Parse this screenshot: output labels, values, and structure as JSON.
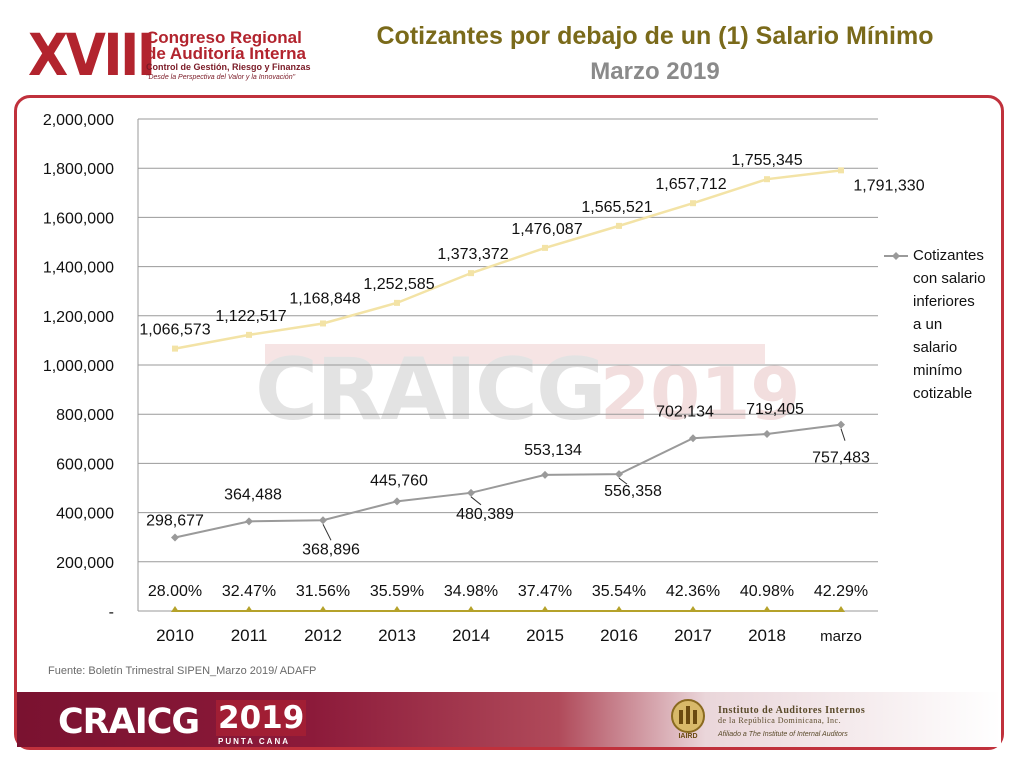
{
  "header": {
    "logo_numeral": "XVIII",
    "logo_line1": "Congreso Regional",
    "logo_line2": "de Auditoría Interna",
    "logo_line3": "Control de Gestión, Riesgo y Finanzas",
    "logo_line4": "\"Desde la Perspectiva del Valor y la Innovación\"",
    "title": "Cotizantes por debajo de un (1) Salario Mínimo",
    "subtitle": "Marzo 2019"
  },
  "watermark": {
    "text": "CRAICG",
    "year": "2019",
    "place": "PUNTA CANA"
  },
  "source": "Fuente: Boletín Trimestral SIPEN_Marzo 2019/ ADAFP",
  "footer": {
    "brand": "CRAICG",
    "year": "2019",
    "place": "PUNTA CANA",
    "org_line1": "Instituto de Auditores Internos",
    "org_line2": "de la República Dominicana, Inc.",
    "org_line3": "Afiliado a The Institute of Internal Auditors",
    "org_logo_text": "IAIRD"
  },
  "colors": {
    "title": "#7a6a1a",
    "subtitle": "#8a8a8a",
    "brand_red": "#b2242e",
    "series_total": "#f3e3a6",
    "series_below": "#9a9a9a",
    "series_pct": "#b5a22a",
    "grid": "#9a9a9a"
  },
  "chart_data": {
    "type": "line",
    "categories": [
      "2010",
      "2011",
      "2012",
      "2013",
      "2014",
      "2015",
      "2016",
      "2017",
      "2018",
      "marzo"
    ],
    "ylim": [
      0,
      2000000
    ],
    "yticks": [
      "-",
      "200,000",
      "400,000",
      "600,000",
      "800,000",
      "1,000,000",
      "1,200,000",
      "1,400,000",
      "1,600,000",
      "1,800,000",
      "2,000,000"
    ],
    "grid": true,
    "legend_position": "right",
    "series": [
      {
        "values": [
          1066573,
          1122517,
          1168848,
          1252585,
          1373372,
          1476087,
          1565521,
          1657712,
          1755345,
          1791330
        ],
        "labels": [
          "1,066,573",
          "1,122,517",
          "1,168,848",
          "1,252,585",
          "1,373,372",
          "1,476,087",
          "1,565,521",
          "1,657,712",
          "1,755,345",
          "1,791,330"
        ]
      },
      {
        "name": "Cotizantes con salario inferiores a un salario minímo cotizable",
        "legend_lines": [
          "Cotizantes",
          "con salario",
          "inferiores",
          "a un",
          "salario",
          "minímo",
          "cotizable"
        ],
        "values": [
          298677,
          364488,
          368896,
          445760,
          480389,
          553134,
          556358,
          702134,
          719405,
          757483
        ],
        "labels": [
          "298,677",
          "364,488",
          "368,896",
          "445,760",
          "480,389",
          "553,134",
          "556,358",
          "702,134",
          "719,405",
          "757,483"
        ]
      },
      {
        "values": [
          0,
          0,
          0,
          0,
          0,
          0,
          0,
          0,
          0,
          0
        ],
        "labels": [
          "28.00%",
          "32.47%",
          "31.56%",
          "35.59%",
          "34.98%",
          "37.47%",
          "35.54%",
          "42.36%",
          "40.98%",
          "42.29%"
        ]
      }
    ]
  }
}
